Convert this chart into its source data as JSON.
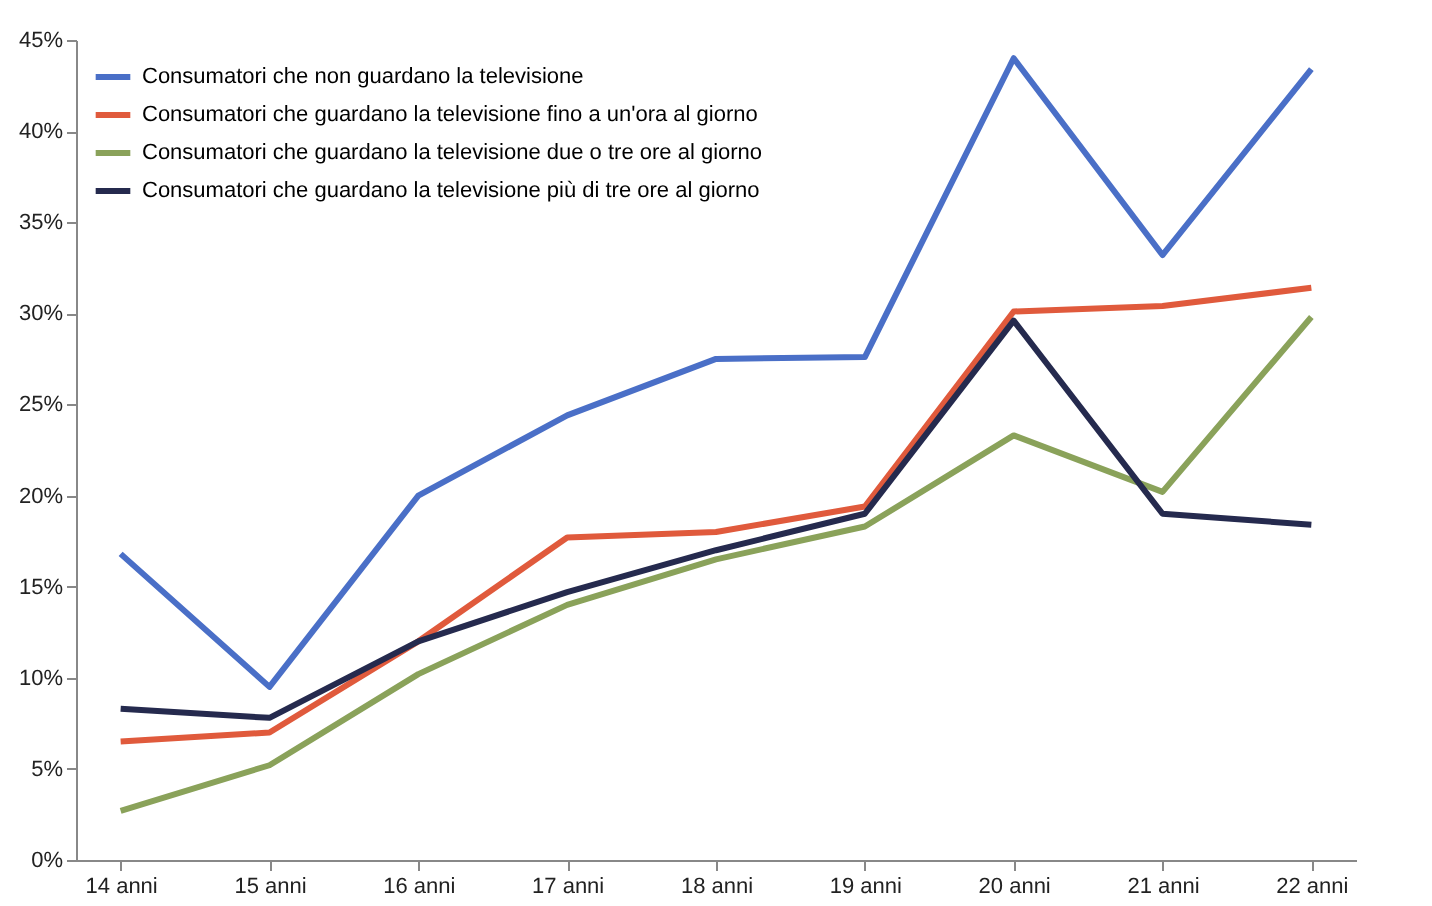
{
  "chart_data": {
    "type": "line",
    "categories": [
      "14 anni",
      "15 anni",
      "16 anni",
      "17 anni",
      "18 anni",
      "19 anni",
      "20 anni",
      "21 anni",
      "22 anni"
    ],
    "series": [
      {
        "name": "Consumatori che non guardano la televisione",
        "color": "#4a6fc7",
        "values": [
          16.8,
          9.5,
          20,
          24.4,
          27.5,
          27.6,
          44,
          33.2,
          43.4
        ]
      },
      {
        "name": "Consumatori che  guardano la televisione fino a un'ora al giorno",
        "color": "#e05a3c",
        "values": [
          6.5,
          7.0,
          12.0,
          17.7,
          18.0,
          19.4,
          30.1,
          30.4,
          31.4
        ]
      },
      {
        "name": "Consumatori che  guardano la televisione due o tre ore al giorno",
        "color": "#8aa25a",
        "values": [
          2.7,
          5.2,
          10.2,
          14.0,
          16.5,
          18.3,
          23.3,
          20.2,
          29.8
        ]
      },
      {
        "name": "Consumatori che  guardano la televisione più di tre ore al giorno",
        "color": "#252a4e",
        "values": [
          8.3,
          7.8,
          12.0,
          14.7,
          17.0,
          19.0,
          29.6,
          19.0,
          18.4
        ]
      }
    ],
    "ylim": [
      0,
      45
    ],
    "yticks": [
      {
        "value": 0,
        "label": "0%"
      },
      {
        "value": 5,
        "label": "5%"
      },
      {
        "value": 10,
        "label": "10%"
      },
      {
        "value": 15,
        "label": "15%"
      },
      {
        "value": 20,
        "label": "20%"
      },
      {
        "value": 25,
        "label": "25%"
      },
      {
        "value": 30,
        "label": "30%"
      },
      {
        "value": 35,
        "label": "35%"
      },
      {
        "value": 40,
        "label": "40%"
      },
      {
        "value": 45,
        "label": "45%"
      }
    ],
    "grid": false,
    "legend": "top left",
    "marker": "none",
    "line_style": "solid"
  }
}
